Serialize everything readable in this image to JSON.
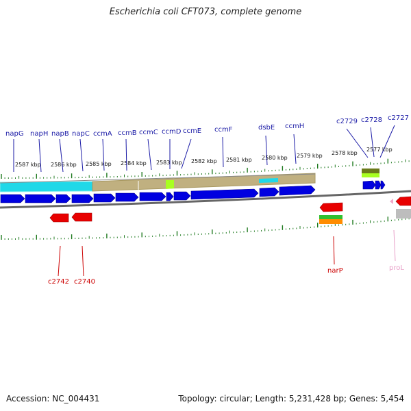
{
  "title": "Escherichia coli CFT073, complete genome",
  "footer": {
    "accession": "Accession: NC_004431",
    "summary": "Topology: circular; Length: 5,231,428 bp; Genes: 5,454"
  },
  "colors": {
    "gene_forward": "#0000e0",
    "gene_reverse": "#e80000",
    "label_forward": "#1a1aa6",
    "label_reverse": "#cc0000",
    "rna": "#e8a0c8",
    "tick": "#1f7a1f",
    "axis": "#777777"
  },
  "scale_labels": [
    "2587 kbp",
    "2586 kbp",
    "2585 kbp",
    "2584 kbp",
    "2583 kbp",
    "2582 kbp",
    "2581 kbp",
    "2580 kbp",
    "2579 kbp",
    "2578 kbp",
    "2577 kbp"
  ],
  "top_gene_labels": [
    "napG",
    "napH",
    "napB",
    "napC",
    "ccmA",
    "ccmB",
    "ccmC",
    "ccmD",
    "ccmE",
    "ccmF",
    "dsbE",
    "ccmH",
    "c2729",
    "c2728",
    "c2727"
  ],
  "bottom_gene_labels": [
    "c2742",
    "c2740",
    "narP",
    "proL"
  ]
}
